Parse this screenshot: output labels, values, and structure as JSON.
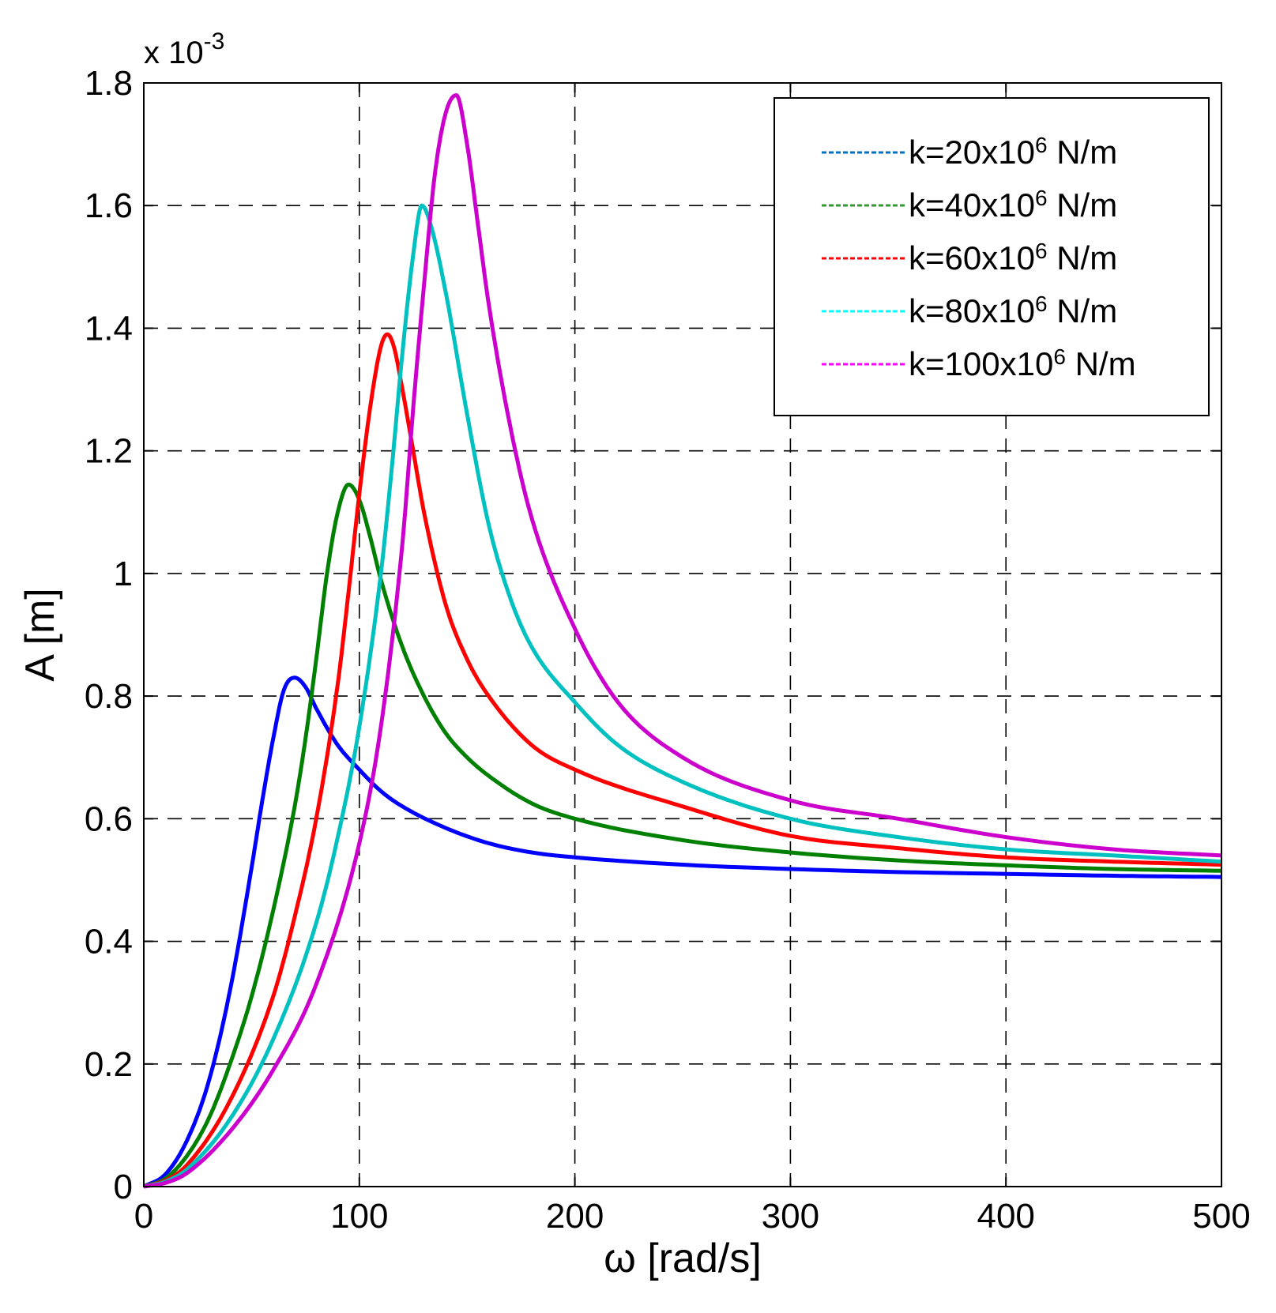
{
  "chart_data": {
    "type": "line",
    "title": "",
    "xlabel": "ω [rad/s]",
    "ylabel": "A [m]",
    "y_exponent_base": "x 10",
    "y_exponent_power": "-3",
    "xlim": [
      0,
      500
    ],
    "ylim": [
      0,
      1.8
    ],
    "x_ticks": [
      0,
      100,
      200,
      300,
      400,
      500
    ],
    "x_tick_labels": [
      "0",
      "100",
      "200",
      "300",
      "400",
      "500"
    ],
    "y_ticks": [
      0,
      0.2,
      0.4,
      0.6,
      0.8,
      1.0,
      1.2,
      1.4,
      1.6,
      1.8
    ],
    "y_tick_labels": [
      "0",
      "0.2",
      "0.4",
      "0.6",
      "0.8",
      "1",
      "1.2",
      "1.4",
      "1.6",
      "1.8"
    ],
    "grid": true,
    "legend_position": "top-right",
    "series": [
      {
        "name": "k=20x10⁶ N/m",
        "label_main": "k=20x10",
        "label_sup": "6",
        "label_unit": " N/m",
        "color": "#0000ff",
        "legend_color": "#0070c0",
        "x": [
          0,
          10,
          20,
          30,
          40,
          50,
          55,
          60,
          65,
          70,
          75,
          80,
          90,
          100,
          110,
          120,
          140,
          160,
          180,
          200,
          250,
          300,
          350,
          400,
          450,
          500
        ],
        "y": [
          0,
          0.02,
          0.075,
          0.17,
          0.32,
          0.52,
          0.63,
          0.73,
          0.81,
          0.83,
          0.815,
          0.78,
          0.72,
          0.68,
          0.645,
          0.62,
          0.585,
          0.56,
          0.545,
          0.537,
          0.525,
          0.518,
          0.513,
          0.51,
          0.507,
          0.505
        ]
      },
      {
        "name": "k=40x10⁶ N/m",
        "label_main": "k=40x10",
        "label_sup": "6",
        "label_unit": " N/m",
        "color": "#008000",
        "legend_color": "#339933",
        "x": [
          0,
          10,
          20,
          30,
          40,
          50,
          60,
          70,
          75,
          80,
          85,
          90,
          95,
          100,
          105,
          110,
          120,
          130,
          140,
          150,
          160,
          180,
          200,
          250,
          300,
          350,
          400,
          450,
          500
        ],
        "y": [
          0,
          0.013,
          0.05,
          0.11,
          0.2,
          0.31,
          0.45,
          0.62,
          0.73,
          0.86,
          1.0,
          1.1,
          1.145,
          1.12,
          1.06,
          0.99,
          0.88,
          0.8,
          0.74,
          0.7,
          0.67,
          0.625,
          0.6,
          0.565,
          0.545,
          0.532,
          0.524,
          0.518,
          0.515
        ]
      },
      {
        "name": "k=60x10⁶ N/m",
        "label_main": "k=60x10",
        "label_sup": "6",
        "label_unit": " N/m",
        "color": "#ff0000",
        "legend_color": "#ff0000",
        "x": [
          0,
          10,
          20,
          40,
          60,
          70,
          80,
          90,
          95,
          100,
          105,
          110,
          113,
          116,
          120,
          125,
          130,
          140,
          150,
          160,
          180,
          200,
          250,
          300,
          350,
          400,
          450,
          500
        ],
        "y": [
          0,
          0.01,
          0.035,
          0.14,
          0.31,
          0.44,
          0.6,
          0.82,
          0.97,
          1.13,
          1.27,
          1.37,
          1.39,
          1.37,
          1.3,
          1.2,
          1.1,
          0.95,
          0.86,
          0.8,
          0.72,
          0.68,
          0.62,
          0.572,
          0.552,
          0.537,
          0.53,
          0.525
        ]
      },
      {
        "name": "k=80x10⁶ N/m",
        "label_main": "k=80x10",
        "label_sup": "6",
        "label_unit": " N/m",
        "color": "#00c0c0",
        "legend_color": "#00ffff",
        "x": [
          0,
          10,
          20,
          40,
          60,
          80,
          90,
          100,
          110,
          115,
          120,
          125,
          129,
          133,
          140,
          150,
          160,
          170,
          180,
          200,
          220,
          250,
          300,
          350,
          400,
          450,
          500
        ],
        "y": [
          0,
          0.008,
          0.028,
          0.11,
          0.24,
          0.43,
          0.57,
          0.75,
          1.0,
          1.17,
          1.36,
          1.52,
          1.6,
          1.57,
          1.46,
          1.26,
          1.08,
          0.96,
          0.88,
          0.79,
          0.72,
          0.66,
          0.6,
          0.57,
          0.55,
          0.54,
          0.53
        ]
      },
      {
        "name": "k=100x10⁶ N/m",
        "label_main": "k=100x10",
        "label_sup": "6",
        "label_unit": " N/m",
        "color": "#cc00cc",
        "legend_color": "#ff00ff",
        "x": [
          0,
          10,
          20,
          40,
          60,
          80,
          100,
          110,
          120,
          125,
          130,
          135,
          140,
          145,
          150,
          155,
          160,
          170,
          180,
          200,
          220,
          250,
          300,
          350,
          400,
          450,
          500
        ],
        "y": [
          0,
          0.006,
          0.022,
          0.09,
          0.19,
          0.33,
          0.56,
          0.75,
          1.05,
          1.27,
          1.47,
          1.65,
          1.75,
          1.78,
          1.7,
          1.57,
          1.44,
          1.24,
          1.09,
          0.91,
          0.79,
          0.7,
          0.63,
          0.6,
          0.57,
          0.55,
          0.54
        ]
      }
    ]
  }
}
